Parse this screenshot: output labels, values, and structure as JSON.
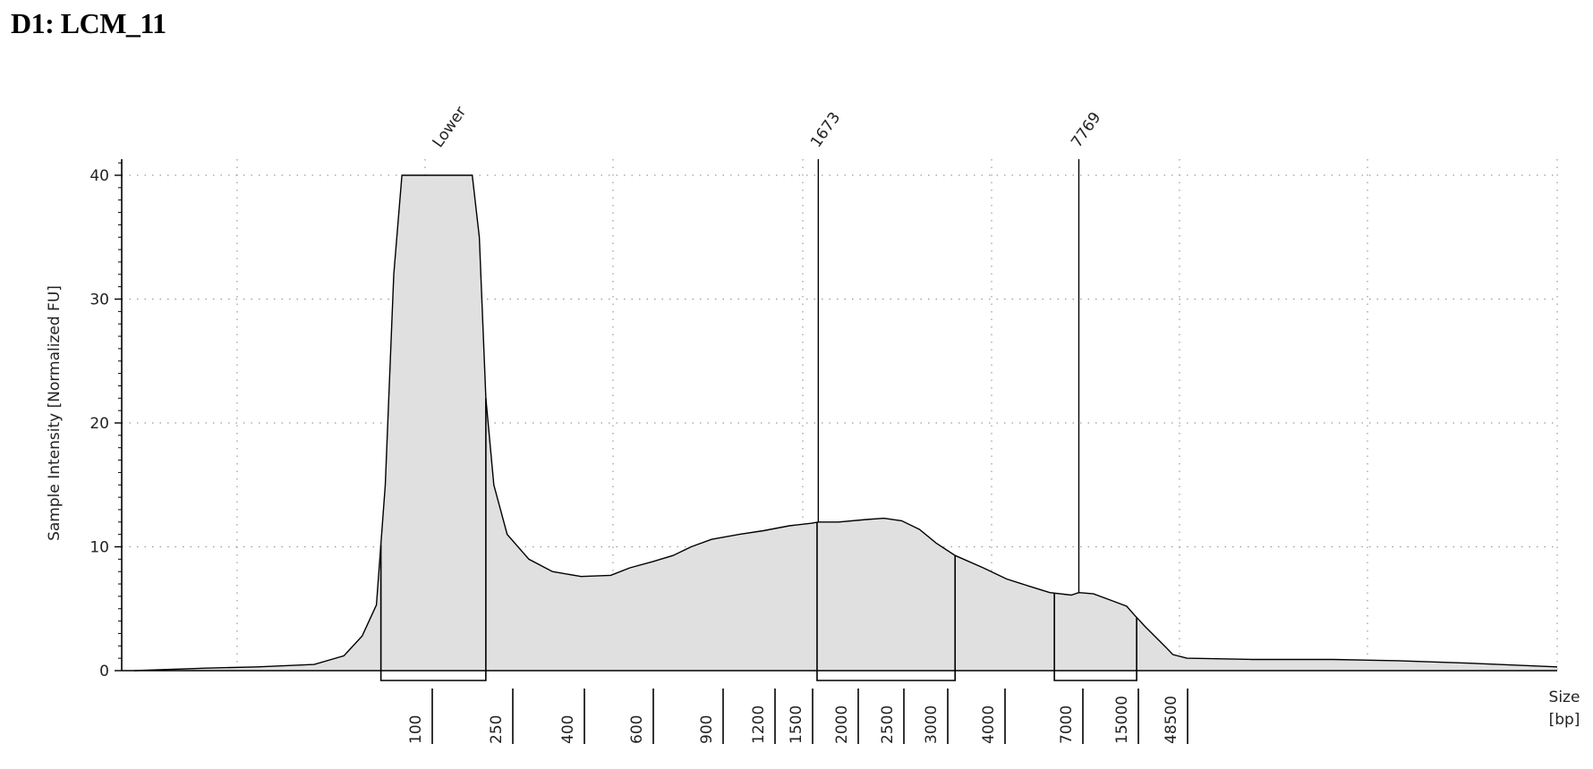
{
  "title": "D1: LCM_11",
  "chart_data": {
    "type": "area",
    "ylabel": "Sample Intensity [Normalized FU]",
    "xlabel": [
      "Size",
      "[bp]"
    ],
    "ylim": [
      0,
      40
    ],
    "yticks": [
      0,
      10,
      20,
      30,
      40
    ],
    "grid": true,
    "fill_color": "#e0e0e0",
    "line_color": "#000000",
    "ladder_sizes": [
      "100",
      "250",
      "400",
      "600",
      "900",
      "1200",
      "1500",
      "2000",
      "2500",
      "3000",
      "4000",
      "7000",
      "15000",
      "48500"
    ],
    "peak_labels": [
      "Lower",
      "1673",
      "7769"
    ],
    "regions": [
      {
        "from_bp": 80,
        "to_bp": 210
      },
      {
        "from_bp": 1660,
        "to_bp": 3300
      },
      {
        "from_bp": 6200,
        "to_bp": 19000
      }
    ],
    "trace": [
      [
        20,
        0.0
      ],
      [
        30,
        0.2
      ],
      [
        40,
        0.3
      ],
      [
        55,
        0.5
      ],
      [
        65,
        1.2
      ],
      [
        72,
        2.8
      ],
      [
        78,
        5.3
      ],
      [
        82,
        15
      ],
      [
        86,
        32
      ],
      [
        90,
        40
      ],
      [
        180,
        40
      ],
      [
        195,
        35
      ],
      [
        210,
        22
      ],
      [
        230,
        15
      ],
      [
        260,
        11
      ],
      [
        300,
        9
      ],
      [
        350,
        8
      ],
      [
        420,
        7.6
      ],
      [
        500,
        7.7
      ],
      [
        560,
        8.3
      ],
      [
        640,
        8.8
      ],
      [
        720,
        9.3
      ],
      [
        800,
        10.0
      ],
      [
        900,
        10.6
      ],
      [
        1050,
        11.0
      ],
      [
        1200,
        11.3
      ],
      [
        1400,
        11.7
      ],
      [
        1600,
        11.9
      ],
      [
        1673,
        12.0
      ],
      [
        1900,
        12.0
      ],
      [
        2200,
        12.2
      ],
      [
        2400,
        12.3
      ],
      [
        2600,
        12.1
      ],
      [
        2800,
        11.4
      ],
      [
        3000,
        10.3
      ],
      [
        3300,
        9.3
      ],
      [
        3800,
        8.3
      ],
      [
        4400,
        7.4
      ],
      [
        5200,
        6.8
      ],
      [
        6000,
        6.3
      ],
      [
        7000,
        6.1
      ],
      [
        7769,
        6.3
      ],
      [
        9500,
        6.2
      ],
      [
        12000,
        5.7
      ],
      [
        15000,
        5.2
      ],
      [
        18000,
        4.5
      ],
      [
        23000,
        3.6
      ],
      [
        30000,
        2.7
      ],
      [
        38000,
        1.9
      ],
      [
        45000,
        1.3
      ],
      [
        50000,
        1.0
      ],
      [
        60000,
        0.9
      ],
      [
        75000,
        0.9
      ],
      [
        90000,
        0.8
      ],
      [
        110000,
        0.6
      ],
      [
        140000,
        0.3
      ]
    ]
  }
}
